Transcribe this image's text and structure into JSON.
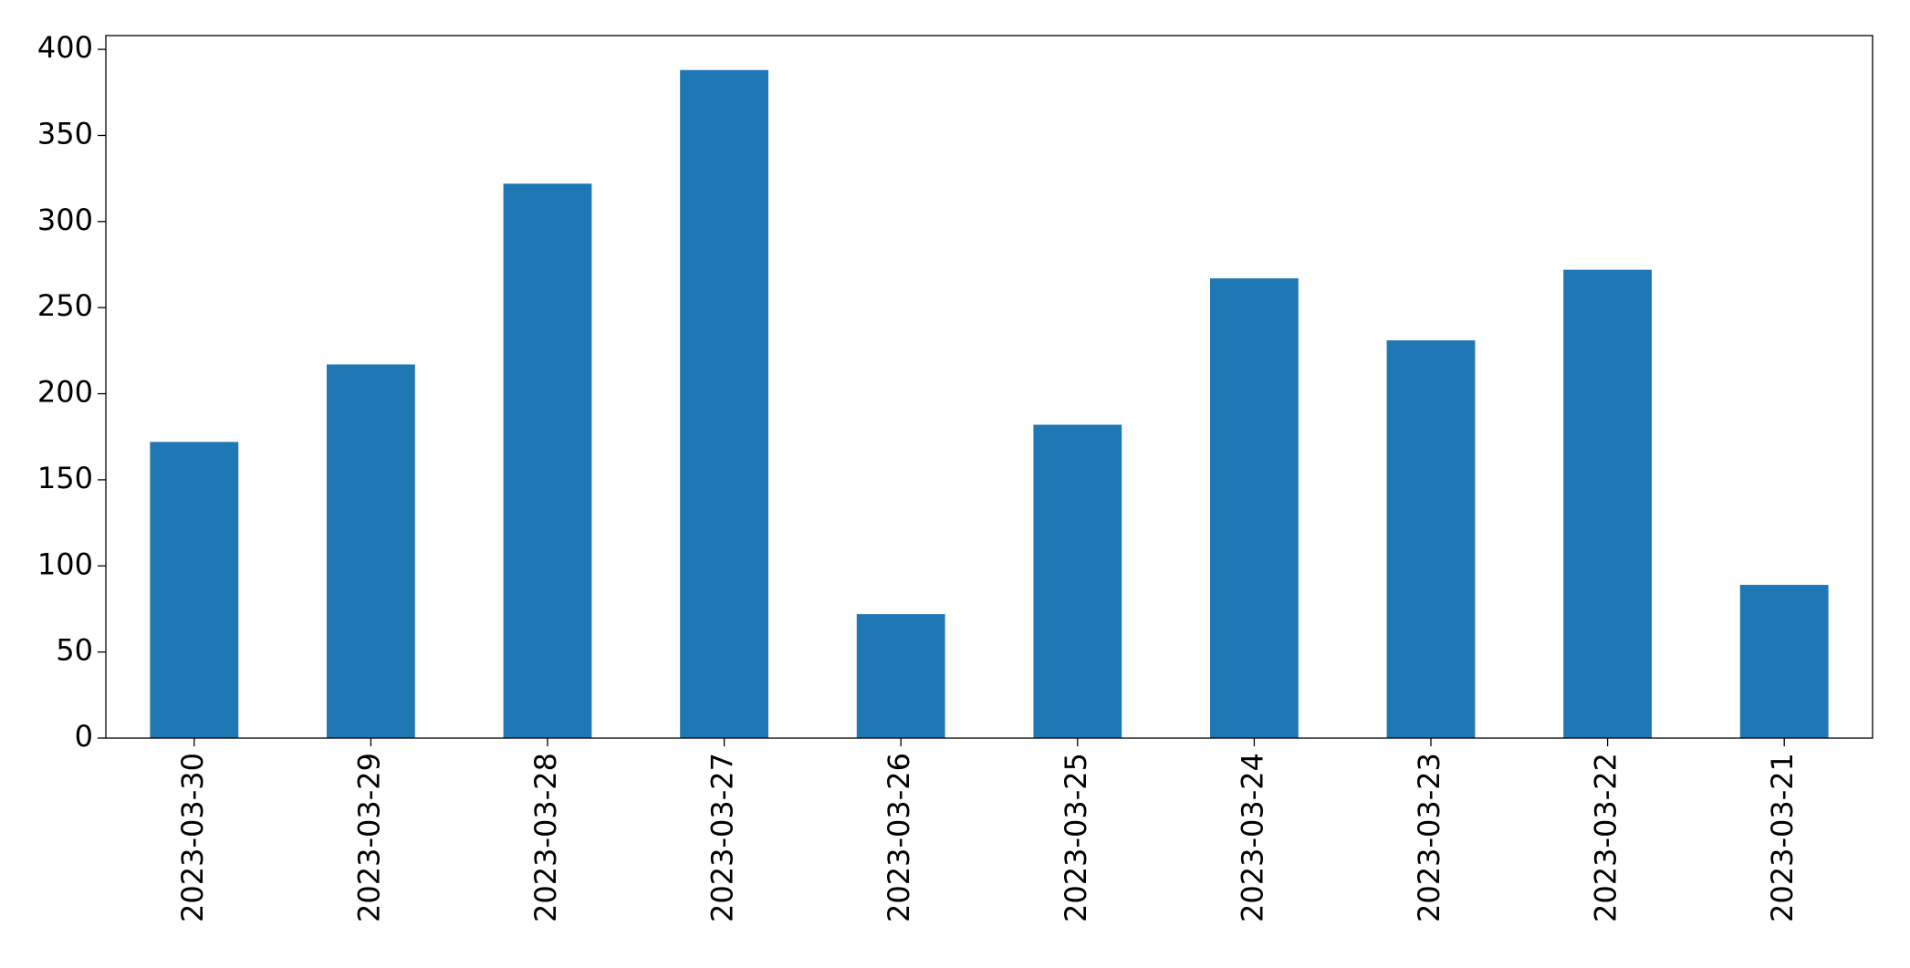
{
  "chart_data": {
    "type": "bar",
    "categories": [
      "2023-03-30",
      "2023-03-29",
      "2023-03-28",
      "2023-03-27",
      "2023-03-26",
      "2023-03-25",
      "2023-03-24",
      "2023-03-23",
      "2023-03-22",
      "2023-03-21"
    ],
    "values": [
      172,
      217,
      322,
      388,
      72,
      182,
      267,
      231,
      272,
      89
    ],
    "color": "#1f77b4",
    "ylim": [
      0,
      408
    ],
    "yticks": [
      0,
      50,
      100,
      150,
      200,
      250,
      300,
      350,
      400
    ],
    "grid": false
  }
}
